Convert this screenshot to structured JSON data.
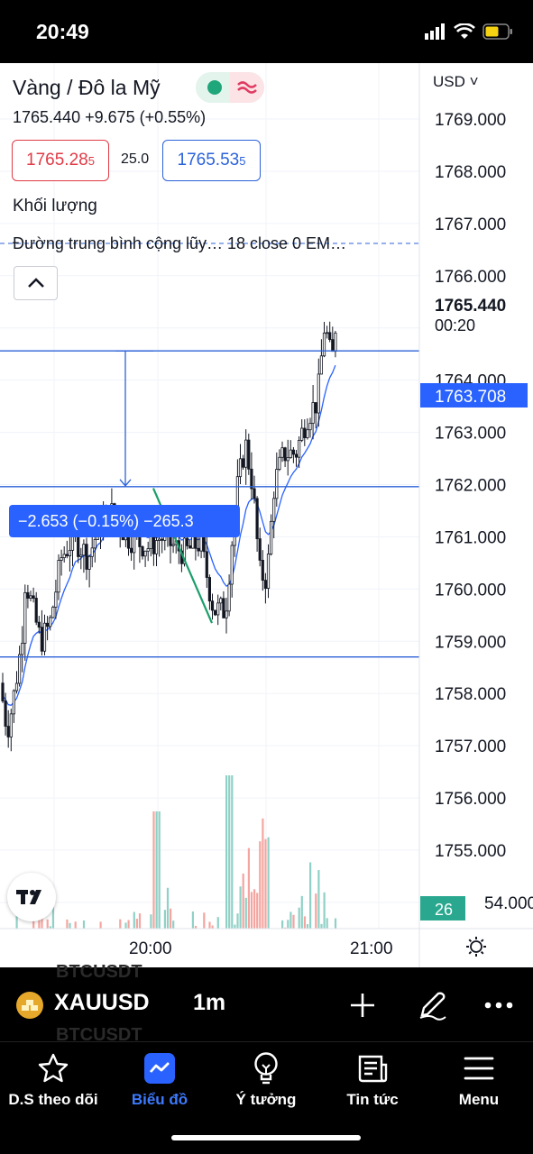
{
  "status_bar": {
    "time": "20:49",
    "icons": [
      "cellular-icon",
      "wifi-icon",
      "battery-icon"
    ]
  },
  "header": {
    "title": "Vàng / Đô la Mỹ",
    "last_price": "1765.440",
    "change": "+9.675",
    "change_percent": "(+0.55%)",
    "quote_line": "1765.440  +9.675 (+0.55%)"
  },
  "quote": {
    "bid_main": "1765.28",
    "bid_sup": "5",
    "spread": "25.0",
    "ask_main": "1765.53",
    "ask_sup": "5"
  },
  "indicators": {
    "volume": "Khối lượng",
    "ma": "Đường trung bình cộng lũy…   18 close 0 EM…"
  },
  "price_axis": {
    "currency": "USD",
    "ticks": [
      "1769.000",
      "1768.000",
      "1767.000",
      "1766.000",
      "1764.000",
      "1763.000",
      "1762.000",
      "1761.000",
      "1760.000",
      "1759.000",
      "1758.000",
      "1757.000",
      "1756.000",
      "1755.000",
      "54.000"
    ],
    "last_label": "1765.440",
    "countdown": "00:20",
    "ma_label": "1763.708",
    "volume_label": "26"
  },
  "time_axis": {
    "ticks": [
      "20:00",
      "21:00"
    ]
  },
  "measure": {
    "label": "−2.653 (−0.15%) −265.3"
  },
  "toolbar": {
    "ghost": "BTCUSDT",
    "ticker": "XAUUSD",
    "interval": "1m"
  },
  "tabs": [
    {
      "label": "D.S theo dõi",
      "icon": "star-icon"
    },
    {
      "label": "Biểu đồ",
      "icon": "chart-icon"
    },
    {
      "label": "Ý tưởng",
      "icon": "lightbulb-icon"
    },
    {
      "label": "Tin tức",
      "icon": "news-icon"
    },
    {
      "label": "Menu",
      "icon": "hamburger-icon"
    }
  ],
  "colors": {
    "accent": "#2962ff",
    "up": "#26a69a",
    "down": "#ef5350",
    "volume_up": "#8fd1c6",
    "volume_down": "#f5a5a0",
    "bid": "#e03b46",
    "ask": "#2b62d9"
  }
}
